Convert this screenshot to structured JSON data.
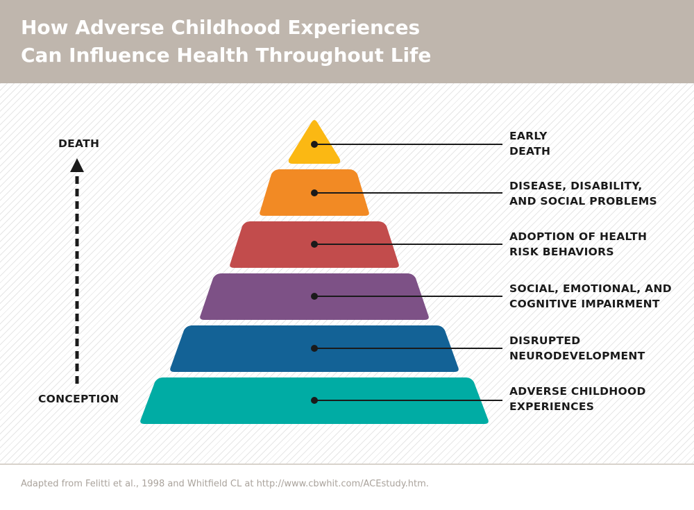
{
  "title": {
    "line1": "How Adverse Childhood Experiences",
    "line2": "Can Influence Health Throughout Life"
  },
  "timeline": {
    "top_label": "DEATH",
    "bottom_label": "CONCEPTION"
  },
  "levels": [
    {
      "line1": "EARLY",
      "line2": "DEATH",
      "color": "#fbb813"
    },
    {
      "line1": "DISEASE, DISABILITY,",
      "line2": "AND SOCIAL PROBLEMS",
      "color": "#f28a24"
    },
    {
      "line1": "ADOPTION OF HEALTH",
      "line2": "RISK BEHAVIORS",
      "color": "#c24c4c"
    },
    {
      "line1": "SOCIAL, EMOTIONAL, AND",
      "line2": "COGNITIVE IMPAIRMENT",
      "color": "#7d5186"
    },
    {
      "line1": "DISRUPTED",
      "line2": "NEURODEVELOPMENT",
      "color": "#136296"
    },
    {
      "line1": "ADVERSE CHILDHOOD",
      "line2": "EXPERIENCES",
      "color": "#00aca4"
    }
  ],
  "source": "Adapted from Felitti et al., 1998 and Whitfield CL at http://www.cbwhit.com/ACEstudy.htm."
}
